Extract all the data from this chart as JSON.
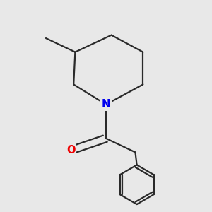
{
  "bg_color": "#e8e8e8",
  "bond_color": "#2a2a2a",
  "N_color": "#0000ee",
  "O_color": "#ee0000",
  "line_width": 1.6,
  "font_size_atom": 10.5
}
